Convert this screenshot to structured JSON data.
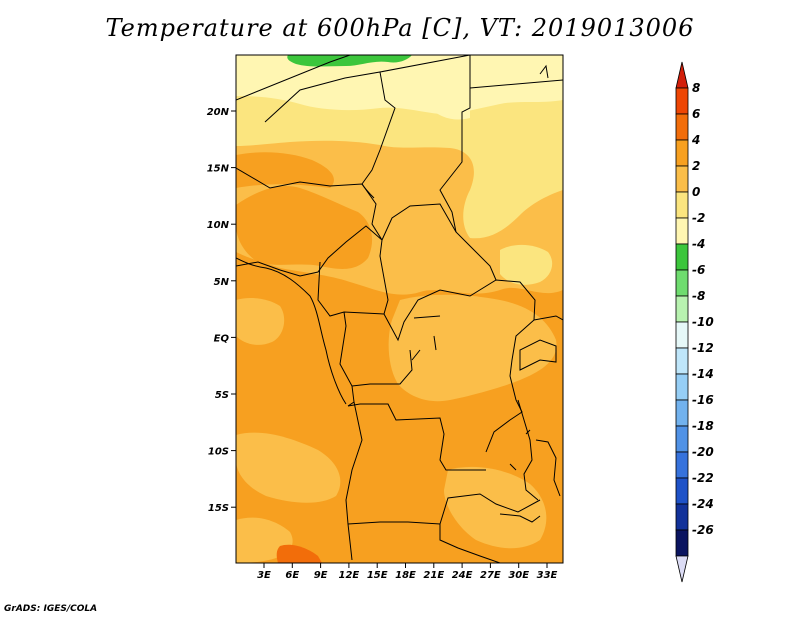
{
  "title": "Temperature at 600hPa [C], VT: 2019013006",
  "credit": "GrADS: IGES/COLA",
  "map": {
    "lat_ticks": [
      "20N",
      "15N",
      "10N",
      "5N",
      "EQ",
      "5S",
      "10S",
      "15S"
    ],
    "lon_ticks": [
      "3E",
      "6E",
      "9E",
      "12E",
      "15E",
      "18E",
      "21E",
      "24E",
      "27E",
      "30E",
      "33E"
    ],
    "colors": {
      "band_neg2_0": "#fbe57f",
      "band_0_2": "#fbbe49",
      "band_2_4": "#f7a020",
      "band_4_6": "#f26d0a",
      "band_neg4_neg2": "#fff6b2",
      "band_neg6_neg4": "#3cc63c"
    }
  },
  "colorbar": {
    "labels": [
      "8",
      "6",
      "4",
      "2",
      "0",
      "-2",
      "-4",
      "-6",
      "-8",
      "-10",
      "-12",
      "-14",
      "-16",
      "-18",
      "-20",
      "-22",
      "-24",
      "-26"
    ],
    "colors": [
      "#d21e0a",
      "#ee4604",
      "#f26d0a",
      "#f7a020",
      "#fbbe49",
      "#fbe57f",
      "#fff6b2",
      "#3cc63c",
      "#6fdc6f",
      "#b8f2b0",
      "#e6f8f8",
      "#bfe6fa",
      "#96cef5",
      "#72b2ee",
      "#5092e6",
      "#3672dc",
      "#1e52c8",
      "#12329a",
      "#0a1460",
      "#dcdcf5"
    ]
  }
}
